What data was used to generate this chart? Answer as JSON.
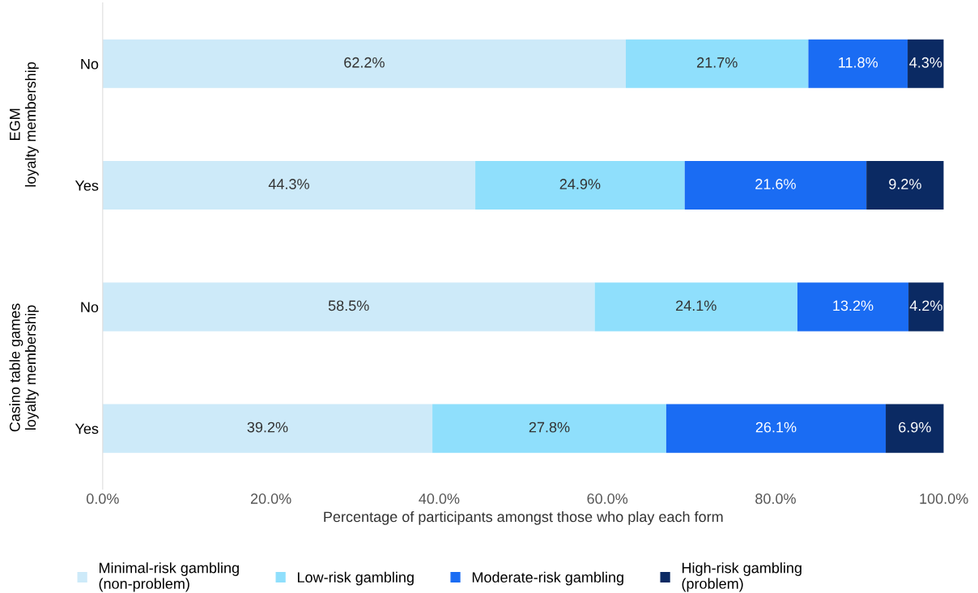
{
  "chart_data": {
    "type": "bar",
    "orientation": "horizontal",
    "stacked": true,
    "legend": "bottom",
    "grid": false,
    "xlabel": "Percentage of participants amongst those who play each form",
    "categories": [
      "No",
      "Yes",
      "No",
      "Yes"
    ],
    "annotations": [
      "EGM\nloyalty membership",
      "Casino table games\nloyalty membership"
    ],
    "xlim": [
      0,
      100
    ],
    "xticks": [
      {
        "value": 0,
        "label": "0.0%"
      },
      {
        "value": 20,
        "label": "20.0%"
      },
      {
        "value": 40,
        "label": "40.0%"
      },
      {
        "value": 60,
        "label": "60.0%"
      },
      {
        "value": 80,
        "label": "80.0%"
      },
      {
        "value": 100,
        "label": "100.0%"
      }
    ],
    "series": [
      {
        "name": "Minimal-risk gambling\n(non-problem)",
        "color": "#cdeaf9",
        "values": [
          62.2,
          44.3,
          58.5,
          39.2
        ],
        "value_labels": [
          "62.2%",
          "44.3%",
          "58.5%",
          "39.2%"
        ]
      },
      {
        "name": "Low-risk gambling",
        "color": "#8fdffc",
        "values": [
          21.7,
          24.9,
          24.1,
          27.8
        ],
        "value_labels": [
          "21.7%",
          "24.9%",
          "24.1%",
          "27.8%"
        ]
      },
      {
        "name": "Moderate-risk gambling",
        "color": "#1a6cf3",
        "values": [
          11.8,
          21.6,
          13.2,
          26.1
        ],
        "value_labels": [
          "11.8%",
          "21.6%",
          "13.2%",
          "26.1%"
        ]
      },
      {
        "name": "High-risk gambling\n(problem)",
        "color": "#0b2a63",
        "values": [
          4.3,
          9.2,
          4.2,
          6.9
        ],
        "value_labels": [
          "4.3%",
          "9.2%",
          "4.2%",
          "6.9%"
        ]
      }
    ]
  }
}
